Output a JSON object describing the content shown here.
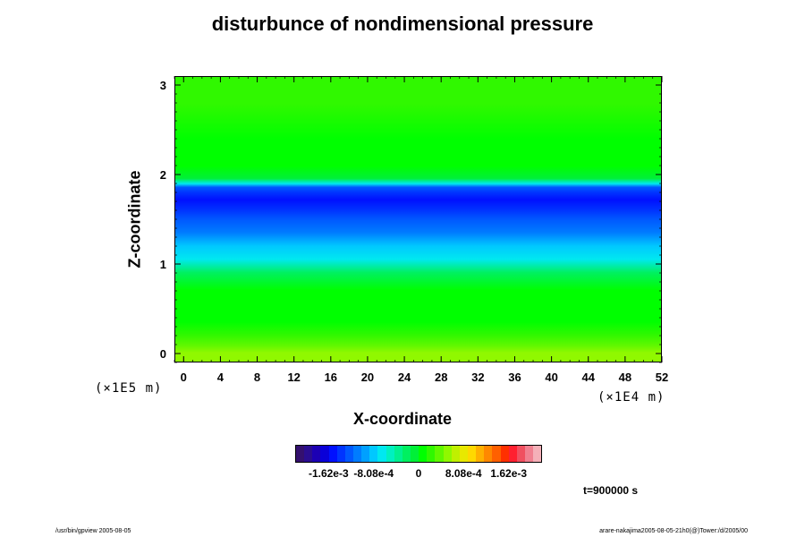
{
  "chart_data": {
    "type": "heatmap",
    "title": "disturbunce of nondimensional pressure",
    "xlabel": "X-coordinate",
    "ylabel": "Z-coordinate",
    "x_unit": "(×1E4 m)",
    "y_unit": "(×1E5 m)",
    "xlim": [
      -1,
      52
    ],
    "ylim": [
      -0.1,
      3.1
    ],
    "x_ticks": [
      "0",
      "4",
      "8",
      "12",
      "16",
      "20",
      "24",
      "28",
      "32",
      "36",
      "40",
      "44",
      "48",
      "52"
    ],
    "y_ticks": [
      "0",
      "1",
      "2",
      "3"
    ],
    "colorbar": {
      "tick_labels": [
        "-1.62e-3",
        "-8.08e-4",
        "0",
        "8.08e-4",
        "1.62e-3"
      ],
      "range": [
        -0.00222,
        0.00222
      ],
      "colors": [
        "#34106e",
        "#2a0d90",
        "#1c00b4",
        "#0a00d8",
        "#0010ff",
        "#0034ff",
        "#0058ff",
        "#007cff",
        "#00a0ff",
        "#00c8ff",
        "#00e8f0",
        "#00f0c0",
        "#00f090",
        "#00f060",
        "#00f038",
        "#00ff00",
        "#30f800",
        "#60f800",
        "#90f800",
        "#c0f000",
        "#e8e800",
        "#ffd800",
        "#ffb000",
        "#ff8800",
        "#ff6000",
        "#ff3000",
        "#ff2030",
        "#f05060",
        "#f08090",
        "#f4b0b8"
      ]
    },
    "profile_z": [
      0.0,
      0.08,
      0.2,
      0.35,
      0.5,
      0.7,
      0.9,
      1.05,
      1.2,
      1.35,
      1.5,
      1.6,
      1.72,
      1.8,
      1.86,
      1.9,
      1.96,
      2.1,
      2.4,
      2.8,
      3.05
    ],
    "profile_value": [
      0.00055,
      0.0004,
      0.0002,
      0.00012,
      8e-05,
      2e-05,
      -0.00015,
      -0.0006,
      -0.00085,
      -0.00105,
      -0.0013,
      -0.00145,
      -0.0015,
      -0.00145,
      -0.0013,
      -0.0007,
      -5e-05,
      0.0001,
      0.00013,
      0.00015,
      0.00016
    ]
  },
  "annotations": {
    "time": "t=900000 s",
    "footer_left": "/usr/bin/gpview 2005-08-05",
    "footer_right": "arare-nakajima2005-08-05-21h0(@)Tower:/d/2005/00"
  }
}
